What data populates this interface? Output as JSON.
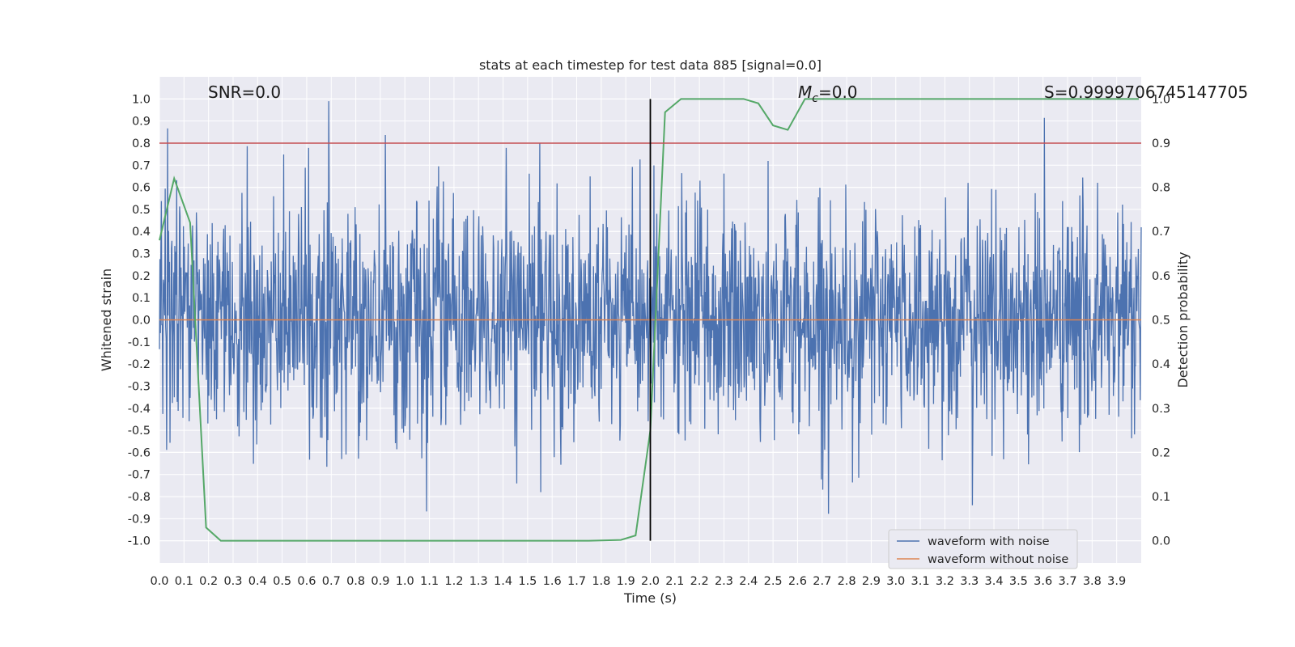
{
  "chart_data": {
    "type": "line",
    "title": "stats at each timestep for test data 885 [signal=0.0]",
    "xlabel": "Time (s)",
    "ylabel": "Whitened strain",
    "ylabel_right": "Detection probability",
    "xlim": [
      0.0,
      4.0
    ],
    "ylim": [
      -1.1,
      1.1
    ],
    "ylim_right": [
      -0.05,
      1.05
    ],
    "x_ticks": [
      "0.0",
      "0.1",
      "0.2",
      "0.3",
      "0.4",
      "0.5",
      "0.6",
      "0.7",
      "0.8",
      "0.9",
      "1.0",
      "1.1",
      "1.2",
      "1.3",
      "1.4",
      "1.5",
      "1.6",
      "1.7",
      "1.8",
      "1.9",
      "2.0",
      "2.1",
      "2.2",
      "2.3",
      "2.4",
      "2.5",
      "2.6",
      "2.7",
      "2.8",
      "2.9",
      "3.0",
      "3.1",
      "3.2",
      "3.3",
      "3.4",
      "3.5",
      "3.6",
      "3.7",
      "3.8",
      "3.9"
    ],
    "y_ticks": [
      "1.0",
      "0.9",
      "0.8",
      "0.7",
      "0.6",
      "0.5",
      "0.4",
      "0.3",
      "0.2",
      "0.1",
      "0.0",
      "-0.1",
      "-0.2",
      "-0.3",
      "-0.4",
      "-0.5",
      "-0.6",
      "-0.7",
      "-0.8",
      "-0.9",
      "-1.0"
    ],
    "y_ticks_right": [
      "1.0",
      "0.9",
      "0.8",
      "0.7",
      "0.6",
      "0.5",
      "0.4",
      "0.3",
      "0.2",
      "0.1",
      "0.0"
    ],
    "grid": true,
    "legend_position": "bottom-right",
    "annotations": {
      "snr": "SNR=0.0",
      "mc_symbol": "M",
      "mc_sub": "c",
      "mc_value": "=0.0",
      "s_value": "S=0.9999706745147705"
    },
    "series": [
      {
        "name": "waveform with noise",
        "color": "#4c72b0",
        "axis": "left",
        "x_range": [
          0.0,
          4.0
        ],
        "samples": 2048,
        "amplitude_envelope": [
          -0.96,
          1.0
        ]
      },
      {
        "name": "waveform without noise",
        "color": "#dd8452",
        "axis": "left",
        "x": [
          0.0,
          4.0
        ],
        "y": [
          0.0,
          0.0
        ]
      },
      {
        "name": "",
        "color": "#55a868",
        "axis": "right",
        "x": [
          0.0,
          0.06,
          0.125,
          0.19,
          0.25,
          0.5,
          1.0,
          1.5,
          1.75,
          1.88,
          1.94,
          2.0,
          2.06,
          2.125,
          2.25,
          2.38,
          2.44,
          2.5,
          2.56,
          2.63,
          2.75,
          3.0,
          3.5,
          3.99
        ],
        "y": [
          0.68,
          0.82,
          0.72,
          0.03,
          0.0,
          0.0,
          0.0,
          0.0,
          0.0,
          0.002,
          0.012,
          0.25,
          0.97,
          1.0,
          1.0,
          1.0,
          0.99,
          0.94,
          0.93,
          1.0,
          1.0,
          1.0,
          1.0,
          1.0
        ]
      }
    ],
    "reference_lines": [
      {
        "type": "horizontal",
        "axis": "right",
        "value": 0.9,
        "color": "#c44e52"
      },
      {
        "type": "vertical",
        "axis": "left",
        "x": 2.0,
        "y_range": [
          -1.0,
          1.0
        ],
        "color": "#000000"
      }
    ]
  }
}
